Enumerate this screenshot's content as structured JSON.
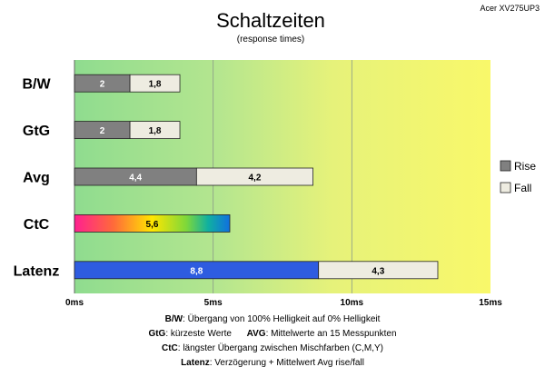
{
  "chart_data": {
    "type": "bar",
    "orientation": "horizontal",
    "stacked": true,
    "title": "Schaltzeiten",
    "subtitle": "(response times)",
    "monitor": "Acer XV275UP3",
    "categories": [
      "B/W",
      "GtG",
      "Avg",
      "CtC",
      "Latenz"
    ],
    "series": [
      {
        "name": "Rise",
        "values": [
          2,
          2,
          4.4,
          5.6,
          8.8
        ],
        "labels": [
          "2",
          "2",
          "4,4",
          "5,6",
          "8,8"
        ]
      },
      {
        "name": "Fall",
        "values": [
          1.8,
          1.8,
          4.2,
          null,
          4.3
        ],
        "labels": [
          "1,8",
          "1,8",
          "4,2",
          "",
          "4,3"
        ]
      }
    ],
    "xlim": [
      0,
      15
    ],
    "xticks": [
      0,
      5,
      10,
      15
    ],
    "xtick_labels": [
      "0ms",
      "5ms",
      "10ms",
      "15ms"
    ],
    "grid": true,
    "legend": {
      "position": "right",
      "entries": [
        "Rise",
        "Fall"
      ]
    },
    "background": "gradient green-to-yellow",
    "colors": {
      "rise": "#808080",
      "fall": "#eeece1",
      "latenz_rise": "#2e5ce0",
      "ctc": "rainbow gradient"
    },
    "footnotes": [
      {
        "key": "B/W",
        "text": ":  Übergang von 100% Helligkeit auf 0% Helligkeit"
      },
      {
        "key": "GtG",
        "text": ": kürzeste  Werte",
        "key2": "AVG",
        "text2": ": Mittelwerte  an 15 Messpunkten"
      },
      {
        "key": "CtC",
        "text": ": längster Übergang  zwischen Mischfarben (C,M,Y)"
      },
      {
        "key": "Latenz",
        "text": ": Verzögerung  + Mittelwert  Avg rise/fall"
      }
    ]
  }
}
